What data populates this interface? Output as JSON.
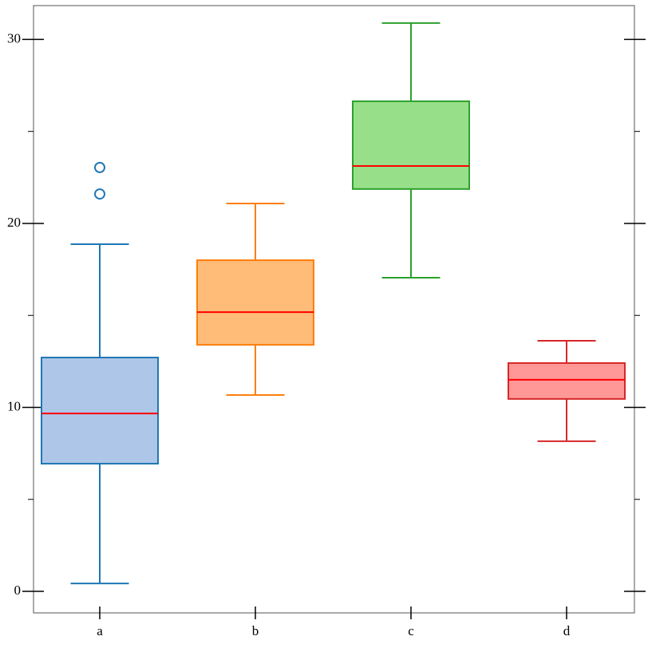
{
  "chart_data": {
    "type": "box",
    "categories": [
      "a",
      "b",
      "c",
      "d"
    ],
    "boxes": [
      {
        "low": 0.43,
        "q1": 6.94,
        "median": 9.67,
        "q3": 12.71,
        "high": 18.87,
        "outliers": [
          23.04,
          21.6
        ],
        "fill": "#aec7e8",
        "edge": "#1f77b4"
      },
      {
        "low": 10.67,
        "q1": 13.4,
        "median": 15.18,
        "q3": 18.0,
        "high": 21.08,
        "outliers": [],
        "fill": "#ffbb78",
        "edge": "#ff7f0e"
      },
      {
        "low": 17.05,
        "q1": 21.87,
        "median": 23.12,
        "q3": 26.64,
        "high": 30.89,
        "outliers": [],
        "fill": "#98df8a",
        "edge": "#2ca02c"
      },
      {
        "low": 8.16,
        "q1": 10.46,
        "median": 11.5,
        "q3": 12.41,
        "high": 13.62,
        "outliers": [],
        "fill": "#ff9896",
        "edge": "#d62728"
      }
    ],
    "median_color": "#ff0000",
    "ylim": [
      -1.17,
      31.84
    ],
    "yticks": [
      0,
      10,
      20,
      30
    ],
    "minor_yticks": [
      5,
      15,
      25
    ]
  }
}
